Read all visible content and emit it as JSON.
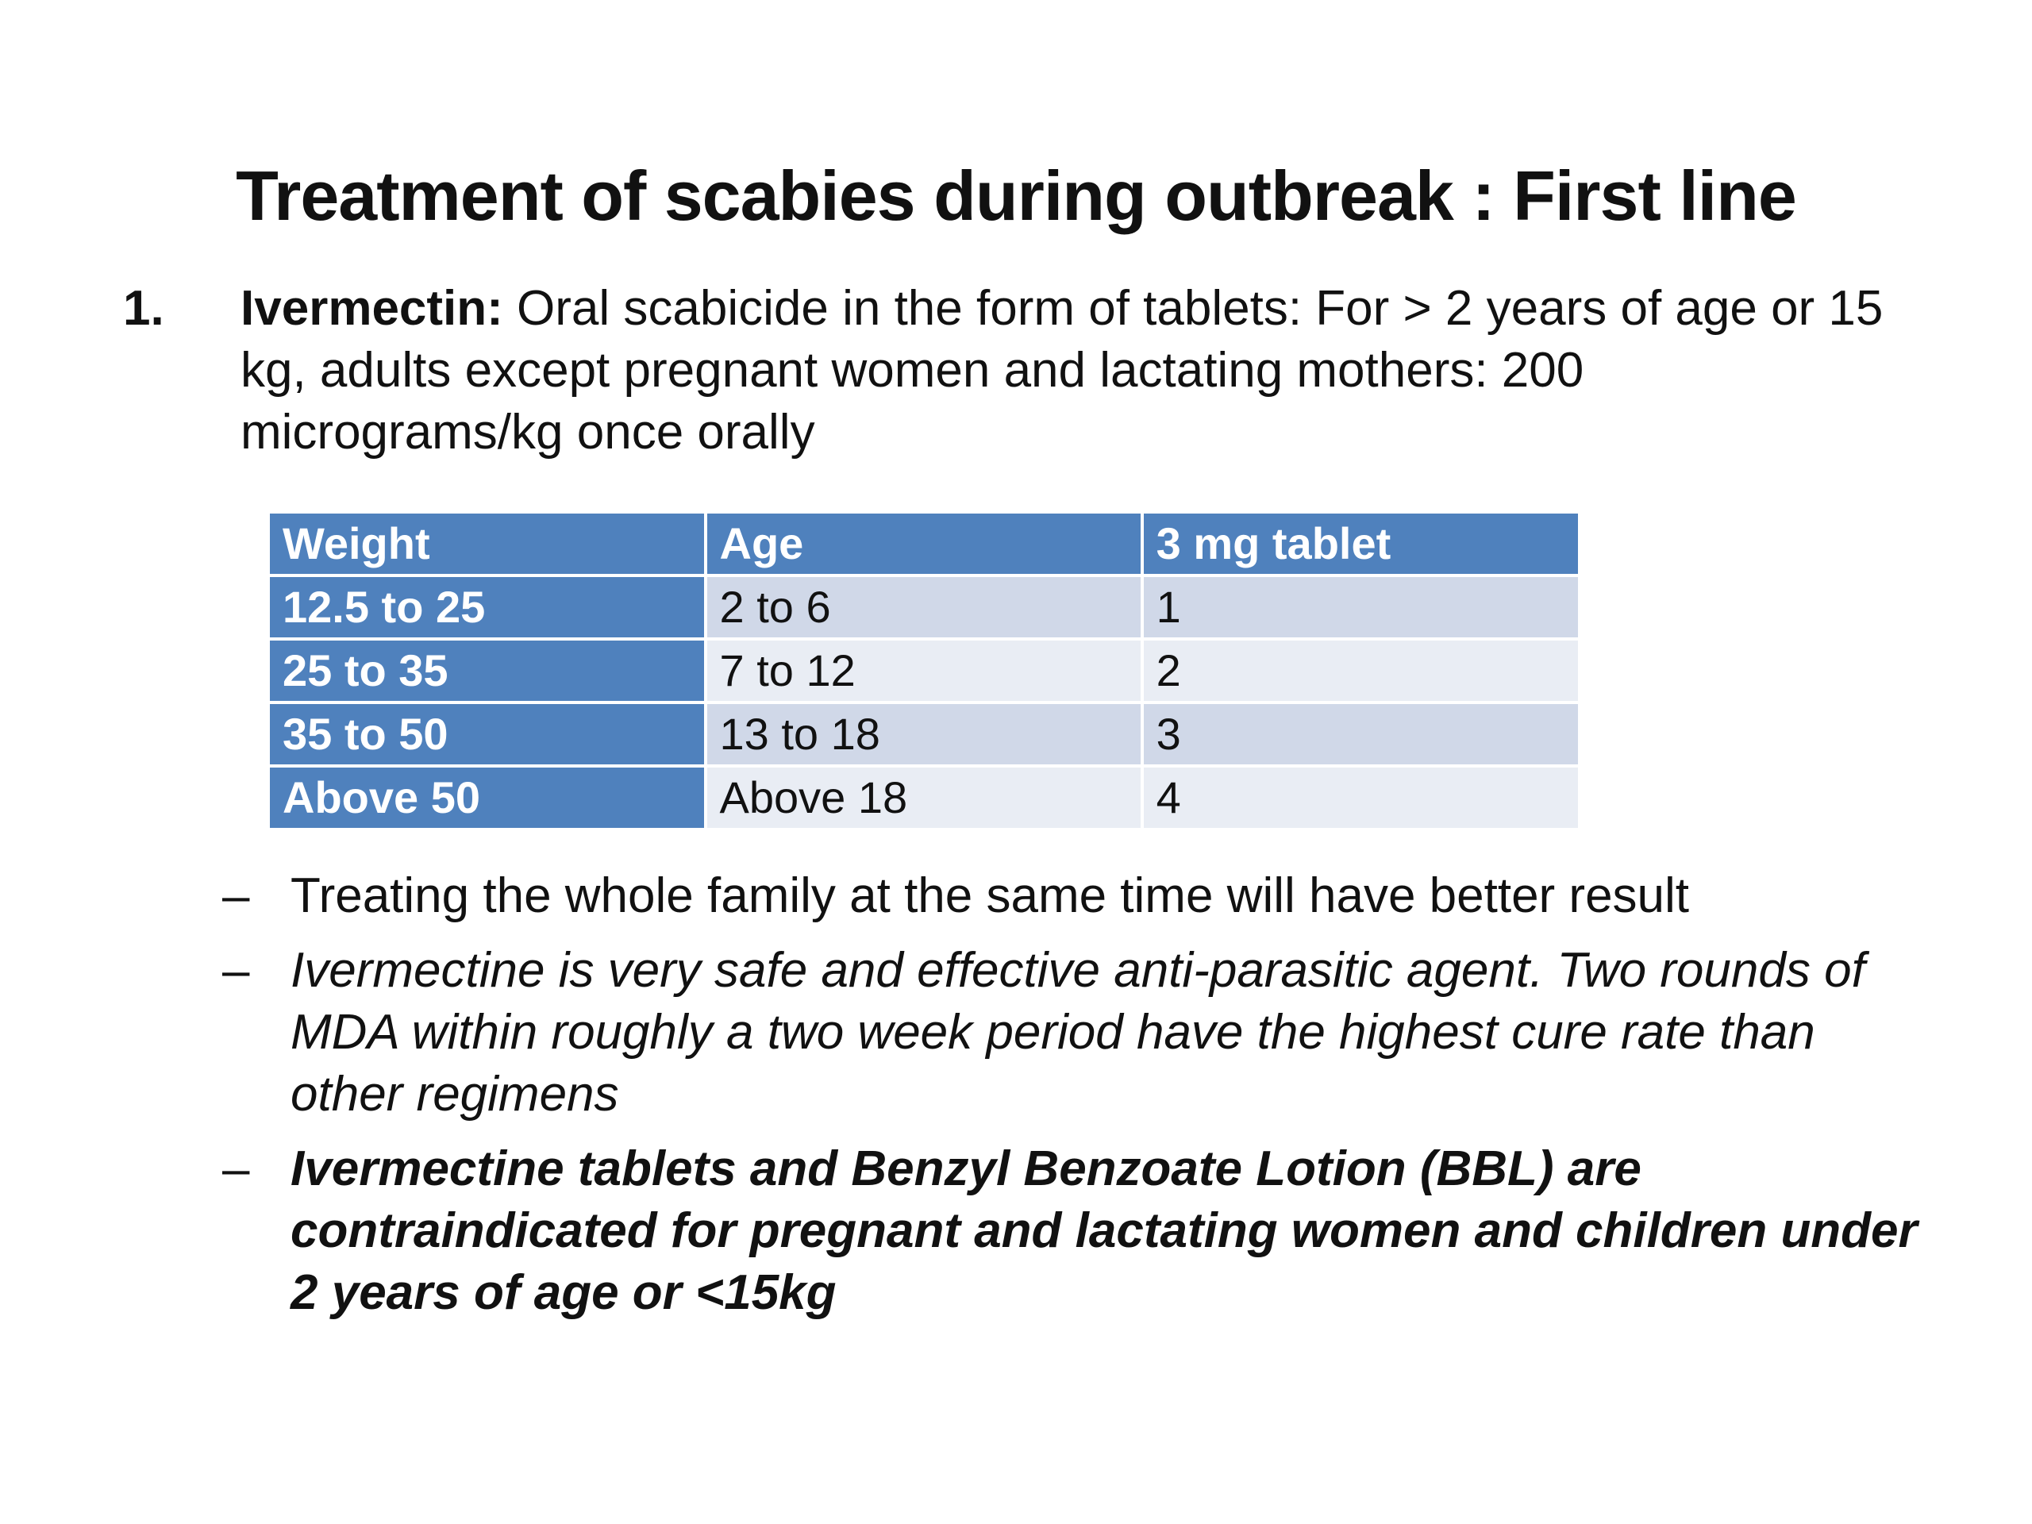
{
  "title": "Treatment of scabies during outbreak : First line",
  "item": {
    "number": "1.",
    "lead": "Ivermectin:",
    "text": " Oral scabicide in the form of tablets: For > 2 years of age or 15 kg, adults except pregnant women and lactating mothers: 200 micrograms/kg once orally"
  },
  "table": {
    "headers": [
      "Weight",
      "Age",
      "3 mg tablet"
    ],
    "rows": [
      [
        "12.5 to 25",
        "2 to 6",
        "1"
      ],
      [
        "25 to 35",
        "7 to 12",
        "2"
      ],
      [
        "35 to 50",
        "13 to 18",
        "3"
      ],
      [
        "Above 50",
        "Above 18",
        "4"
      ]
    ]
  },
  "bullets": [
    {
      "dash": "–",
      "text": "Treating the whole family at the same time will have better result"
    },
    {
      "dash": "–",
      "text": "Ivermectine is very safe and effective anti-parasitic agent. Two rounds of MDA within roughly a two week period have the highest cure rate than other regimens"
    },
    {
      "dash": "–",
      "text": "Ivermectine tablets and Benzyl Benzoate Lotion (BBL) are contraindicated for pregnant and lactating women and children under 2 years of age or <15kg"
    }
  ]
}
